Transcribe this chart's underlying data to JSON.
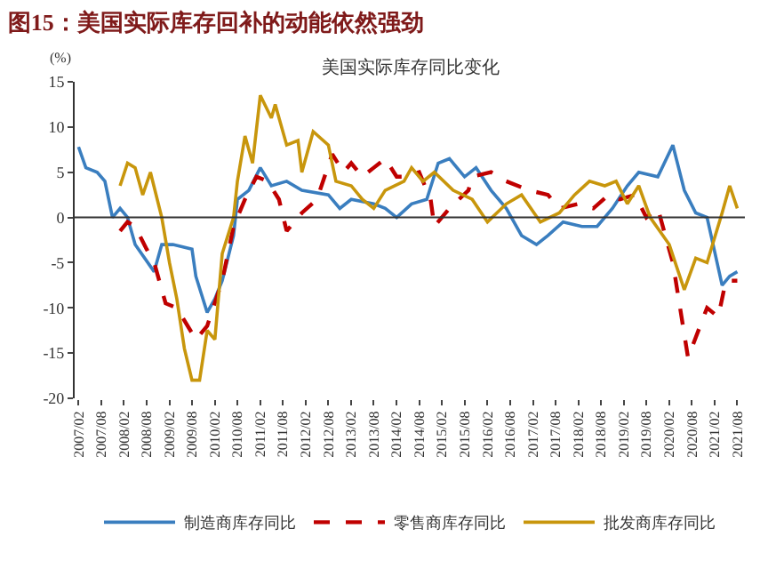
{
  "chart_data": {
    "type": "line",
    "title": "图15：美国实际库存回补的动能依然强劲",
    "subtitle": "美国实际库存同比变化",
    "ylabel": "(%)",
    "ylim": [
      -20,
      15
    ],
    "yticks": [
      -20,
      -15,
      -10,
      -5,
      0,
      5,
      10,
      15
    ],
    "xlim": [
      "2007-01",
      "2021-10"
    ],
    "xticks": [
      {
        "value": "2007-02",
        "label": "2007/02"
      },
      {
        "value": "2007-08",
        "label": "2007/08"
      },
      {
        "value": "2008-02",
        "label": "2008/02"
      },
      {
        "value": "2008-08",
        "label": "2008/08"
      },
      {
        "value": "2009-02",
        "label": "2009/02"
      },
      {
        "value": "2009-08",
        "label": "2009/08"
      },
      {
        "value": "2010-02",
        "label": "2010/02"
      },
      {
        "value": "2010-08",
        "label": "2010/08"
      },
      {
        "value": "2011-02",
        "label": "2011/02"
      },
      {
        "value": "2011-08",
        "label": "2011/08"
      },
      {
        "value": "2012-02",
        "label": "2012/02"
      },
      {
        "value": "2012-08",
        "label": "2012/08"
      },
      {
        "value": "2013-02",
        "label": "2013/02"
      },
      {
        "value": "2013-08",
        "label": "2013/08"
      },
      {
        "value": "2014-02",
        "label": "2014/02"
      },
      {
        "value": "2014-08",
        "label": "2014/08"
      },
      {
        "value": "2015-02",
        "label": "2015/02"
      },
      {
        "value": "2015-08",
        "label": "2015/08"
      },
      {
        "value": "2016-02",
        "label": "2016/02"
      },
      {
        "value": "2016-08",
        "label": "2016/08"
      },
      {
        "value": "2017-02",
        "label": "2017/02"
      },
      {
        "value": "2017-08",
        "label": "2017/08"
      },
      {
        "value": "2018-02",
        "label": "2018/02"
      },
      {
        "value": "2018-08",
        "label": "2018/08"
      },
      {
        "value": "2019-02",
        "label": "2019/02"
      },
      {
        "value": "2019-08",
        "label": "2019/08"
      },
      {
        "value": "2020-02",
        "label": "2020/02"
      },
      {
        "value": "2020-08",
        "label": "2020/08"
      },
      {
        "value": "2021-02",
        "label": "2021/02"
      },
      {
        "value": "2021-08",
        "label": "2021/08"
      }
    ],
    "ref_lines": [
      {
        "axis": "y",
        "value": 0,
        "color": "#333333"
      }
    ],
    "legend": "bottom",
    "marker": "none",
    "series": [
      {
        "name": "制造商库存同比",
        "color": "#3a7ebf",
        "line_style": "solid",
        "x": [
          "2007-02",
          "2007-04",
          "2007-07",
          "2007-09",
          "2007-11",
          "2008-01",
          "2008-03",
          "2008-05",
          "2008-10",
          "2008-12",
          "2009-03",
          "2009-08",
          "2009-09",
          "2009-12",
          "2010-02",
          "2010-04",
          "2010-07",
          "2010-08",
          "2010-11",
          "2011-02",
          "2011-05",
          "2011-09",
          "2012-01",
          "2012-08",
          "2012-11",
          "2013-02",
          "2013-08",
          "2013-11",
          "2014-02",
          "2014-06",
          "2014-10",
          "2015-01",
          "2015-04",
          "2015-08",
          "2015-11",
          "2016-03",
          "2016-07",
          "2016-11",
          "2017-03",
          "2017-06",
          "2017-10",
          "2018-03",
          "2018-07",
          "2018-11",
          "2019-03",
          "2019-06",
          "2019-11",
          "2020-03",
          "2020-06",
          "2020-09",
          "2020-12",
          "2021-04",
          "2021-06",
          "2021-08"
        ],
        "values": [
          7.8,
          5.5,
          5,
          4,
          0,
          1,
          0,
          -3,
          -6,
          -3,
          -3,
          -3.5,
          -6.5,
          -10.5,
          -9,
          -7,
          -2,
          2,
          3,
          5.5,
          3.5,
          4,
          3,
          2.5,
          1,
          2,
          1.5,
          1,
          0,
          1.5,
          2,
          6,
          6.5,
          4.5,
          5.5,
          3,
          1,
          -2,
          -3,
          -2,
          -0.5,
          -1,
          -1,
          1,
          3.5,
          5,
          4.5,
          8,
          3,
          0.5,
          0,
          -7.5,
          -6.5,
          -6
        ]
      },
      {
        "name": "零售商库存同比",
        "color": "#c00000",
        "line_style": "dashed",
        "x": [
          "2008-01",
          "2008-03",
          "2008-05",
          "2008-08",
          "2008-10",
          "2009-01",
          "2009-04",
          "2009-09",
          "2009-12",
          "2010-04",
          "2010-07",
          "2010-10",
          "2011-01",
          "2011-04",
          "2011-07",
          "2011-09",
          "2012-01",
          "2012-05",
          "2012-09",
          "2012-12",
          "2013-02",
          "2013-05",
          "2013-08",
          "2013-11",
          "2014-02",
          "2014-04",
          "2014-08",
          "2014-11",
          "2014-12",
          "2015-04",
          "2015-09",
          "2015-10",
          "2016-03",
          "2016-07",
          "2017-01",
          "2017-06",
          "2017-09",
          "2018-02",
          "2018-06",
          "2018-10",
          "2019-01",
          "2019-05",
          "2019-08",
          "2019-11",
          "2020-03",
          "2020-07",
          "2020-12",
          "2021-03",
          "2021-05",
          "2021-08"
        ],
        "values": [
          -1.5,
          -0.5,
          -1,
          -3.5,
          -5,
          -9.5,
          -10,
          -13.5,
          -12,
          -7,
          -1,
          2,
          4.5,
          4,
          2,
          -1.5,
          0.5,
          2,
          7,
          5,
          6,
          4.5,
          5.5,
          6.5,
          4.5,
          4.5,
          5,
          2,
          -1,
          1,
          3,
          4.5,
          5,
          4,
          3,
          2.5,
          1,
          1.5,
          1,
          2.5,
          2,
          2.5,
          0,
          1,
          -5,
          -15.5,
          -10,
          -11,
          -7,
          -7
        ]
      },
      {
        "name": "批发商库存同比",
        "color": "#c8960c",
        "line_style": "solid",
        "x": [
          "2008-01",
          "2008-03",
          "2008-05",
          "2008-07",
          "2008-09",
          "2008-12",
          "2009-02",
          "2009-04",
          "2009-06",
          "2009-08",
          "2009-10",
          "2009-12",
          "2010-02",
          "2010-04",
          "2010-07",
          "2010-08",
          "2010-10",
          "2010-12",
          "2011-02",
          "2011-05",
          "2011-06",
          "2011-09",
          "2011-12",
          "2012-01",
          "2012-04",
          "2012-08",
          "2012-10",
          "2013-02",
          "2013-05",
          "2013-08",
          "2013-11",
          "2014-04",
          "2014-06",
          "2014-09",
          "2014-12",
          "2015-05",
          "2015-10",
          "2016-02",
          "2016-07",
          "2016-11",
          "2017-04",
          "2017-09",
          "2018-01",
          "2018-05",
          "2018-09",
          "2018-12",
          "2019-03",
          "2019-06",
          "2019-09",
          "2020-02",
          "2020-06",
          "2020-09",
          "2020-12",
          "2021-04",
          "2021-06",
          "2021-08"
        ],
        "values": [
          3.5,
          6,
          5.5,
          2.5,
          5,
          0,
          -5,
          -9,
          -14.5,
          -18,
          -18,
          -12.5,
          -13.5,
          -4,
          0,
          4,
          9,
          6,
          13.5,
          11,
          12.5,
          8,
          8.5,
          5,
          9.5,
          8,
          4,
          3.5,
          2,
          1,
          3,
          4,
          5.5,
          4,
          5,
          3,
          2,
          -0.5,
          1.5,
          2.5,
          -0.5,
          0.5,
          2.5,
          4,
          3.5,
          4,
          1.5,
          3.5,
          0,
          -3,
          -8,
          -4.5,
          -5,
          0.5,
          3.5,
          1
        ]
      }
    ]
  }
}
